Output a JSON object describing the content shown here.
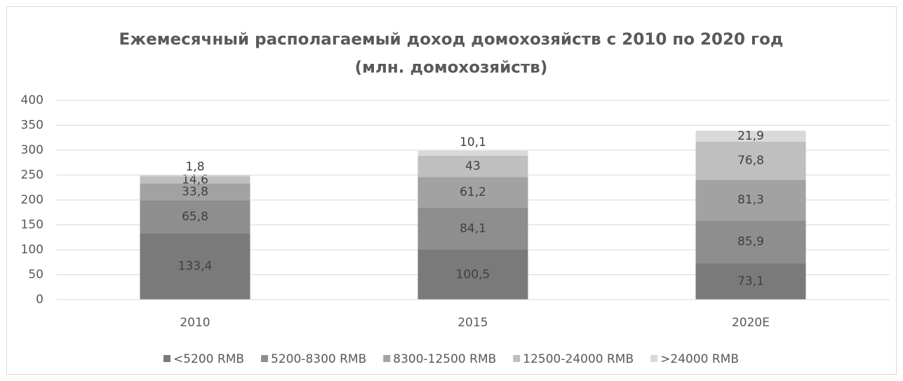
{
  "chart_data": {
    "type": "stacked_bar",
    "title": [
      "Ежемесячный располагаемый доход домохозяйств с 2010 по 2020 год",
      "(млн. домохозяйств)"
    ],
    "categories": [
      "2010",
      "2015",
      "2020E"
    ],
    "series": [
      {
        "name": "<5200 RMB",
        "color": "#7a7a7a",
        "values": [
          133.4,
          100.5,
          73.1
        ],
        "value_labels": [
          "133,4",
          "100,5",
          "73,1"
        ]
      },
      {
        "name": "5200-8300 RMB",
        "color": "#8e8e8e",
        "values": [
          65.8,
          84.1,
          85.9
        ],
        "value_labels": [
          "65,8",
          "84,1",
          "85,9"
        ]
      },
      {
        "name": "8300-12500 RMB",
        "color": "#a2a2a2",
        "values": [
          33.8,
          61.2,
          81.3
        ],
        "value_labels": [
          "33,8",
          "61,2",
          "81,3"
        ]
      },
      {
        "name": "12500-24000 RMB",
        "color": "#bfbfbf",
        "values": [
          14.6,
          43,
          76.8
        ],
        "value_labels": [
          "14,6",
          "43",
          "76,8"
        ]
      },
      {
        "name": ">24000 RMB",
        "color": "#d9d9d9",
        "values": [
          1.8,
          10.1,
          21.9
        ],
        "value_labels": [
          "1,8",
          "10,1",
          "21,9"
        ]
      }
    ],
    "ylim": [
      0,
      400
    ],
    "yticks": [
      0,
      50,
      100,
      150,
      200,
      250,
      300,
      350,
      400
    ],
    "grid": true,
    "legend": "bottom"
  }
}
